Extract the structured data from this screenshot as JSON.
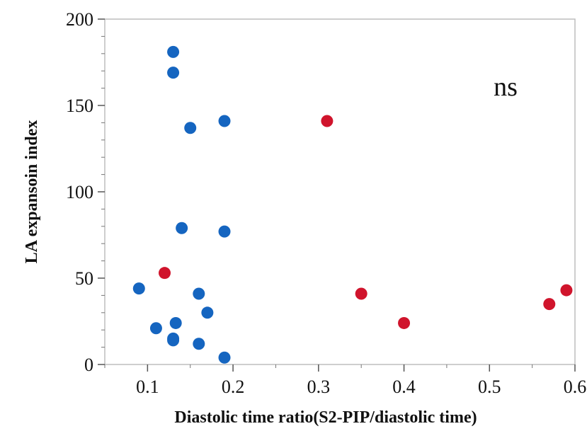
{
  "chart_data": {
    "type": "scatter",
    "title": "",
    "xlabel": "Diastolic time ratio(S2-PIP/diastolic time)",
    "ylabel": "LA expansoin index",
    "xlim": [
      0.05,
      0.6
    ],
    "ylim": [
      0,
      200
    ],
    "xticks": [
      0.1,
      0.2,
      0.3,
      0.4,
      0.5,
      0.6
    ],
    "xtick_labels": [
      "0.1",
      "0.2",
      "0.3",
      "0.4",
      "0.5",
      "0.6"
    ],
    "yticks": [
      0,
      50,
      100,
      150,
      200
    ],
    "ytick_labels": [
      "0",
      "50",
      "100",
      "150",
      "200"
    ],
    "grid": false,
    "annotation": "ns",
    "series": [
      {
        "color": "#1565c0",
        "points": [
          {
            "x": 0.13,
            "y": 181
          },
          {
            "x": 0.13,
            "y": 169
          },
          {
            "x": 0.19,
            "y": 141
          },
          {
            "x": 0.15,
            "y": 137
          },
          {
            "x": 0.14,
            "y": 79
          },
          {
            "x": 0.19,
            "y": 77
          },
          {
            "x": 0.09,
            "y": 44
          },
          {
            "x": 0.16,
            "y": 41
          },
          {
            "x": 0.17,
            "y": 30
          },
          {
            "x": 0.133,
            "y": 24
          },
          {
            "x": 0.11,
            "y": 21
          },
          {
            "x": 0.13,
            "y": 15
          },
          {
            "x": 0.13,
            "y": 14
          },
          {
            "x": 0.16,
            "y": 12
          },
          {
            "x": 0.19,
            "y": 4
          }
        ]
      },
      {
        "color": "#d0142c",
        "points": [
          {
            "x": 0.31,
            "y": 141
          },
          {
            "x": 0.12,
            "y": 53
          },
          {
            "x": 0.35,
            "y": 41
          },
          {
            "x": 0.4,
            "y": 24
          },
          {
            "x": 0.57,
            "y": 35
          },
          {
            "x": 0.59,
            "y": 43
          }
        ]
      }
    ]
  }
}
